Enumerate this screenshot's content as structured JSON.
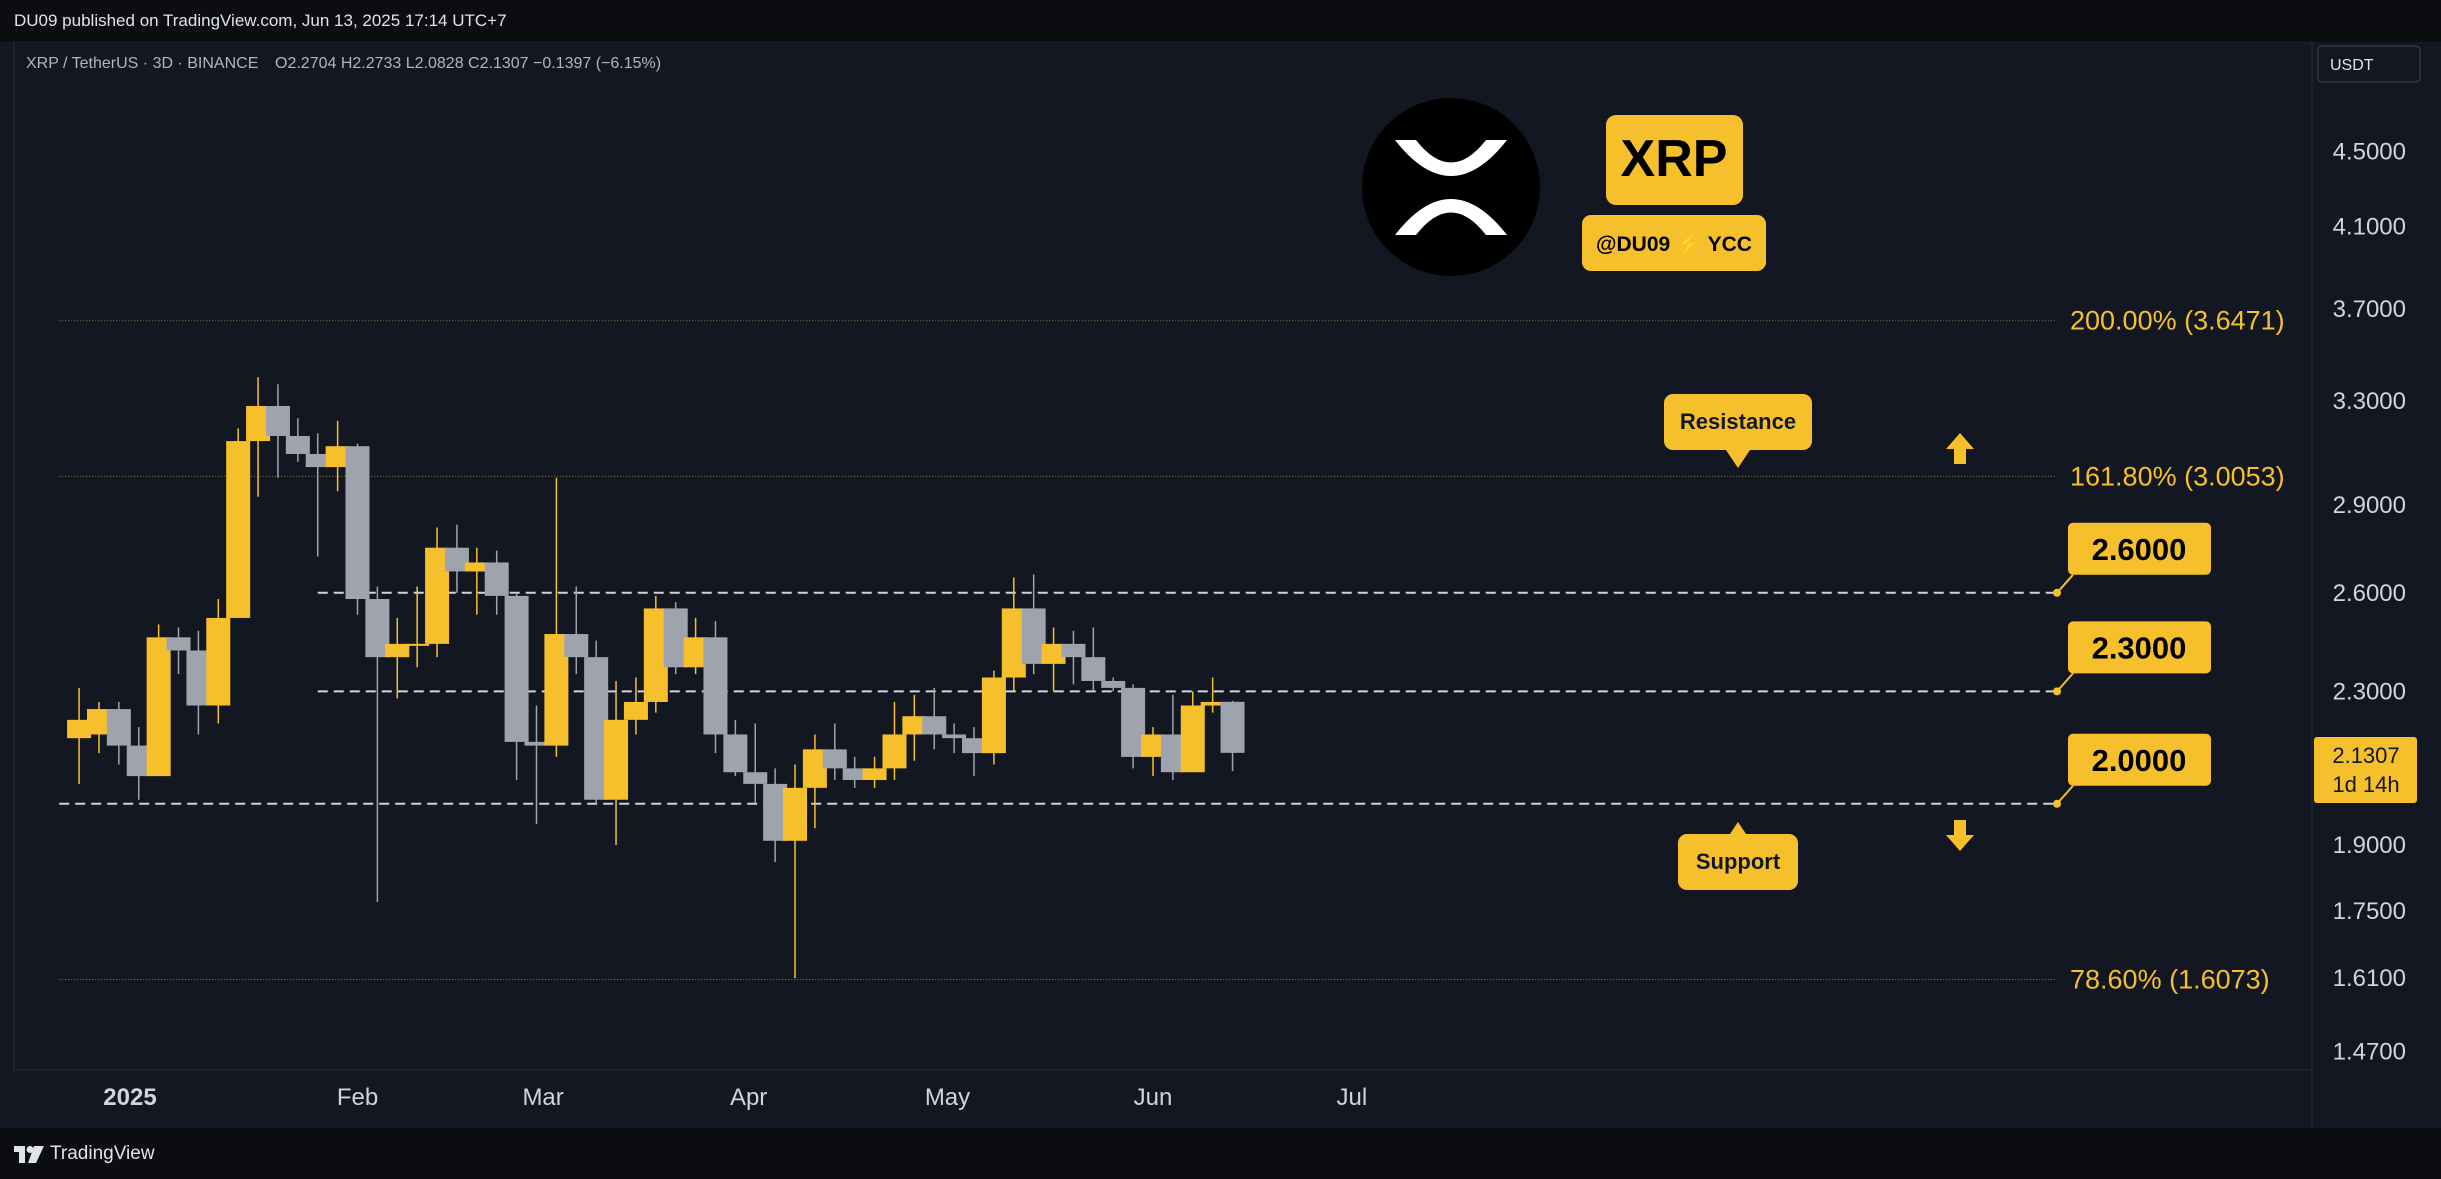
{
  "header": {
    "published_text": "DU09 published on TradingView.com, Jun 13, 2025 17:14 UTC+7"
  },
  "legend": {
    "symbol": "XRP / TetherUS · 3D · BINANCE",
    "ohlc": "O2.2704 H2.2733 L2.0828 C2.1307 −0.1397 (−6.15%)"
  },
  "currency_button": "USDT",
  "branding": {
    "coin_badge": "XRP",
    "author_tag": "@DU09 ⚡ YCC"
  },
  "footer": {
    "logo_text": "TradingView"
  },
  "colors": {
    "background": "#131722",
    "gold": "#f6c02d",
    "gray_candle": "#9fa3ad",
    "text": "#d1d4dc",
    "fib_text": "#f6c02d"
  },
  "chart_data": {
    "type": "candlestick",
    "symbol": "XRP / TetherUS",
    "interval": "3D",
    "exchange": "BINANCE",
    "scale": "log",
    "ylim": [
      1.4,
      4.9
    ],
    "y_ticks": [
      "4.5000",
      "4.1000",
      "3.7000",
      "3.3000",
      "2.9000",
      "2.6000",
      "2.3000",
      "1.9000",
      "1.7500",
      "1.6100",
      "1.4700"
    ],
    "x_labels": [
      {
        "label": "2025",
        "date": "2025-01-01",
        "bold": true
      },
      {
        "label": "Feb",
        "date": "2025-02-01"
      },
      {
        "label": "Mar",
        "date": "2025-03-01"
      },
      {
        "label": "Apr",
        "date": "2025-04-01"
      },
      {
        "label": "May",
        "date": "2025-05-01"
      },
      {
        "label": "Jun",
        "date": "2025-06-01"
      },
      {
        "label": "Jul",
        "date": "2025-07-01"
      }
    ],
    "candles": [
      {
        "date": "2024-12-21",
        "o": 2.17,
        "h": 2.31,
        "l": 2.05,
        "c": 2.22
      },
      {
        "date": "2024-12-24",
        "o": 2.18,
        "h": 2.27,
        "l": 2.13,
        "c": 2.25
      },
      {
        "date": "2024-12-27",
        "o": 2.25,
        "h": 2.27,
        "l": 2.1,
        "c": 2.15
      },
      {
        "date": "2024-12-30",
        "o": 2.15,
        "h": 2.2,
        "l": 2.01,
        "c": 2.07
      },
      {
        "date": "2025-01-02",
        "o": 2.07,
        "h": 2.5,
        "l": 2.07,
        "c": 2.46
      },
      {
        "date": "2025-01-05",
        "o": 2.46,
        "h": 2.49,
        "l": 2.35,
        "c": 2.42
      },
      {
        "date": "2025-01-08",
        "o": 2.42,
        "h": 2.48,
        "l": 2.18,
        "c": 2.26
      },
      {
        "date": "2025-01-11",
        "o": 2.26,
        "h": 2.58,
        "l": 2.21,
        "c": 2.52
      },
      {
        "date": "2025-01-14",
        "o": 2.52,
        "h": 3.19,
        "l": 2.52,
        "c": 3.14
      },
      {
        "date": "2025-01-17",
        "o": 3.14,
        "h": 3.4,
        "l": 2.93,
        "c": 3.28
      },
      {
        "date": "2025-01-20",
        "o": 3.28,
        "h": 3.37,
        "l": 3.0,
        "c": 3.16
      },
      {
        "date": "2025-01-23",
        "o": 3.16,
        "h": 3.23,
        "l": 3.06,
        "c": 3.09
      },
      {
        "date": "2025-01-26",
        "o": 3.09,
        "h": 3.17,
        "l": 2.72,
        "c": 3.04
      },
      {
        "date": "2025-01-29",
        "o": 3.04,
        "h": 3.22,
        "l": 2.95,
        "c": 3.12
      },
      {
        "date": "2025-02-01",
        "o": 3.12,
        "h": 3.13,
        "l": 2.53,
        "c": 2.58
      },
      {
        "date": "2025-02-04",
        "o": 2.58,
        "h": 2.62,
        "l": 1.77,
        "c": 2.4
      },
      {
        "date": "2025-02-07",
        "o": 2.4,
        "h": 2.52,
        "l": 2.28,
        "c": 2.44
      },
      {
        "date": "2025-02-10",
        "o": 2.44,
        "h": 2.62,
        "l": 2.37,
        "c": 2.44
      },
      {
        "date": "2025-02-13",
        "o": 2.44,
        "h": 2.82,
        "l": 2.4,
        "c": 2.75
      },
      {
        "date": "2025-02-16",
        "o": 2.75,
        "h": 2.83,
        "l": 2.6,
        "c": 2.67
      },
      {
        "date": "2025-02-19",
        "o": 2.67,
        "h": 2.75,
        "l": 2.53,
        "c": 2.7
      },
      {
        "date": "2025-02-22",
        "o": 2.7,
        "h": 2.74,
        "l": 2.53,
        "c": 2.59
      },
      {
        "date": "2025-02-25",
        "o": 2.59,
        "h": 2.6,
        "l": 2.06,
        "c": 2.16
      },
      {
        "date": "2025-02-28",
        "o": 2.16,
        "h": 2.26,
        "l": 1.95,
        "c": 2.15
      },
      {
        "date": "2025-03-03",
        "o": 2.15,
        "h": 3.0,
        "l": 2.12,
        "c": 2.47
      },
      {
        "date": "2025-03-06",
        "o": 2.47,
        "h": 2.62,
        "l": 2.35,
        "c": 2.4
      },
      {
        "date": "2025-03-09",
        "o": 2.4,
        "h": 2.45,
        "l": 2.0,
        "c": 2.01
      },
      {
        "date": "2025-03-12",
        "o": 2.01,
        "h": 2.33,
        "l": 1.9,
        "c": 2.22
      },
      {
        "date": "2025-03-15",
        "o": 2.22,
        "h": 2.34,
        "l": 2.18,
        "c": 2.27
      },
      {
        "date": "2025-03-18",
        "o": 2.27,
        "h": 2.59,
        "l": 2.24,
        "c": 2.55
      },
      {
        "date": "2025-03-21",
        "o": 2.55,
        "h": 2.57,
        "l": 2.35,
        "c": 2.37
      },
      {
        "date": "2025-03-24",
        "o": 2.37,
        "h": 2.52,
        "l": 2.35,
        "c": 2.46
      },
      {
        "date": "2025-03-27",
        "o": 2.46,
        "h": 2.51,
        "l": 2.13,
        "c": 2.18
      },
      {
        "date": "2025-03-30",
        "o": 2.18,
        "h": 2.22,
        "l": 2.07,
        "c": 2.08
      },
      {
        "date": "2025-04-02",
        "o": 2.08,
        "h": 2.21,
        "l": 2.0,
        "c": 2.05
      },
      {
        "date": "2025-04-05",
        "o": 2.05,
        "h": 2.09,
        "l": 1.86,
        "c": 1.91
      },
      {
        "date": "2025-04-08",
        "o": 1.91,
        "h": 2.1,
        "l": 1.61,
        "c": 2.04
      },
      {
        "date": "2025-04-11",
        "o": 2.04,
        "h": 2.18,
        "l": 1.94,
        "c": 2.14
      },
      {
        "date": "2025-04-14",
        "o": 2.14,
        "h": 2.21,
        "l": 2.06,
        "c": 2.09
      },
      {
        "date": "2025-04-17",
        "o": 2.09,
        "h": 2.12,
        "l": 2.04,
        "c": 2.06
      },
      {
        "date": "2025-04-20",
        "o": 2.06,
        "h": 2.12,
        "l": 2.04,
        "c": 2.09
      },
      {
        "date": "2025-04-23",
        "o": 2.09,
        "h": 2.27,
        "l": 2.06,
        "c": 2.18
      },
      {
        "date": "2025-04-26",
        "o": 2.18,
        "h": 2.29,
        "l": 2.11,
        "c": 2.23
      },
      {
        "date": "2025-04-29",
        "o": 2.23,
        "h": 2.31,
        "l": 2.14,
        "c": 2.18
      },
      {
        "date": "2025-05-02",
        "o": 2.18,
        "h": 2.21,
        "l": 2.13,
        "c": 2.17
      },
      {
        "date": "2025-05-05",
        "o": 2.17,
        "h": 2.2,
        "l": 2.07,
        "c": 2.13
      },
      {
        "date": "2025-05-08",
        "o": 2.13,
        "h": 2.36,
        "l": 2.1,
        "c": 2.34
      },
      {
        "date": "2025-05-11",
        "o": 2.34,
        "h": 2.65,
        "l": 2.3,
        "c": 2.55
      },
      {
        "date": "2025-05-14",
        "o": 2.55,
        "h": 2.66,
        "l": 2.35,
        "c": 2.38
      },
      {
        "date": "2025-05-17",
        "o": 2.38,
        "h": 2.49,
        "l": 2.3,
        "c": 2.44
      },
      {
        "date": "2025-05-20",
        "o": 2.44,
        "h": 2.48,
        "l": 2.32,
        "c": 2.4
      },
      {
        "date": "2025-05-23",
        "o": 2.4,
        "h": 2.49,
        "l": 2.3,
        "c": 2.33
      },
      {
        "date": "2025-05-26",
        "o": 2.33,
        "h": 2.34,
        "l": 2.3,
        "c": 2.31
      },
      {
        "date": "2025-05-29",
        "o": 2.31,
        "h": 2.32,
        "l": 2.09,
        "c": 2.12
      },
      {
        "date": "2025-06-01",
        "o": 2.12,
        "h": 2.2,
        "l": 2.07,
        "c": 2.18
      },
      {
        "date": "2025-06-04",
        "o": 2.18,
        "h": 2.29,
        "l": 2.06,
        "c": 2.08
      },
      {
        "date": "2025-06-07",
        "o": 2.08,
        "h": 2.3,
        "l": 2.08,
        "c": 2.26
      },
      {
        "date": "2025-06-10",
        "o": 2.26,
        "h": 2.34,
        "l": 2.24,
        "c": 2.27
      },
      {
        "date": "2025-06-13",
        "o": 2.2704,
        "h": 2.2733,
        "l": 2.0828,
        "c": 2.1307
      }
    ],
    "levels": [
      {
        "price": 3.6471,
        "label": "200.00% (3.6471)",
        "style": "dotted-fib",
        "from": "2024-12-18"
      },
      {
        "price": 3.0053,
        "label": "161.80% (3.0053)",
        "style": "dotted-fib",
        "from": "2024-12-18"
      },
      {
        "price": 1.6073,
        "label": "78.60% (1.6073)",
        "style": "dotted-fib",
        "from": "2024-12-18"
      },
      {
        "price": 2.6,
        "label": "2.6000",
        "style": "dashed",
        "from": "2025-01-26"
      },
      {
        "price": 2.3,
        "label": "2.3000",
        "style": "dashed",
        "from": "2025-01-26"
      },
      {
        "price": 2.0,
        "label": "2.0000",
        "style": "dashed",
        "from": "2024-12-18"
      }
    ],
    "annotations": {
      "resistance": "Resistance",
      "support": "Support"
    },
    "last_price": {
      "value": "2.1307",
      "countdown": "1d 14h"
    }
  }
}
